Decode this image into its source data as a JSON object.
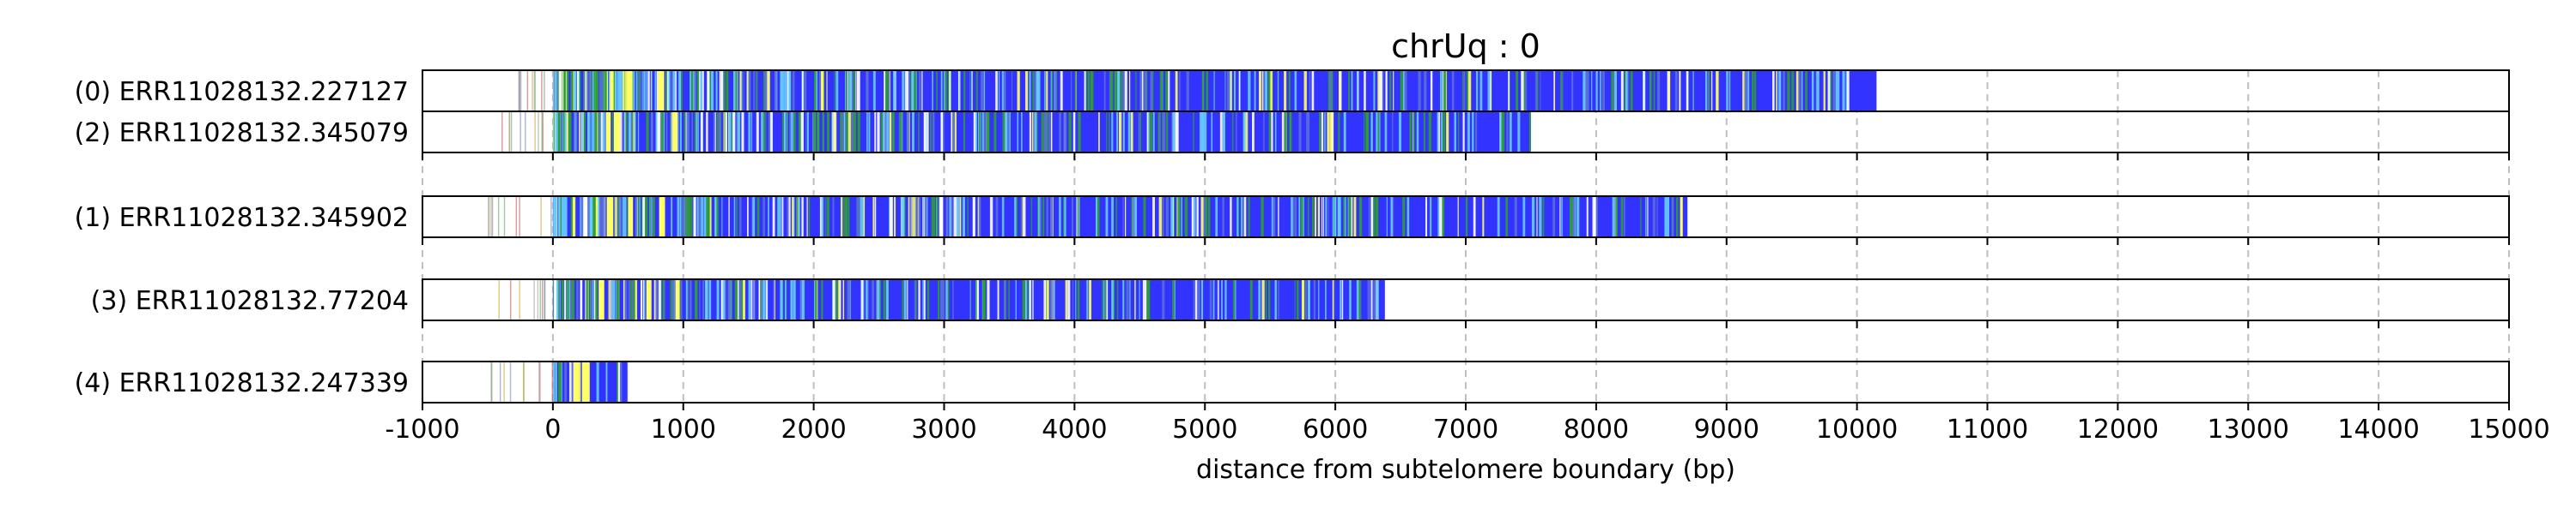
{
  "chart_data": {
    "type": "bar",
    "title": "chrUq : 0",
    "xlabel": "distance from subtelomere boundary (bp)",
    "ylabel": "",
    "xlim": [
      -1000,
      15000
    ],
    "xticks": [
      "-1000",
      "0",
      "1000",
      "2000",
      "3000",
      "4000",
      "5000",
      "6000",
      "7000",
      "8000",
      "9000",
      "10000",
      "11000",
      "12000",
      "13000",
      "14000"
    ],
    "xtick_values": [
      -1000,
      0,
      1000,
      2000,
      3000,
      4000,
      5000,
      6000,
      7000,
      8000,
      9000,
      10000,
      11000,
      12000,
      13000,
      14000
    ],
    "last_tick": "15000",
    "grid": "vertical dashed at each 1000 bp",
    "colors": {
      "repeat_fill": "#3333ff",
      "variant_green": "#2ca02c",
      "variant_yellow": "#ffff66",
      "variant_cyan": "#66ccff",
      "variant_white": "#ffffff",
      "grid": "#b0b0b0"
    },
    "reads": [
      {
        "label": "(0) ERR11028132.227127",
        "group": 0,
        "subtelomere_start": -500,
        "repeat_start": 0,
        "repeat_end": 10150
      },
      {
        "label": "(2) ERR11028132.345079",
        "group": 0,
        "subtelomere_start": -500,
        "repeat_start": 0,
        "repeat_end": 7500
      },
      {
        "label": "(1) ERR11028132.345902",
        "group": 1,
        "subtelomere_start": -500,
        "repeat_start": 0,
        "repeat_end": 8700
      },
      {
        "label": "(3) ERR11028132.77204",
        "group": 2,
        "subtelomere_start": -500,
        "repeat_start": 0,
        "repeat_end": 6380
      },
      {
        "label": "(4) ERR11028132.247339",
        "group": 3,
        "subtelomere_start": -500,
        "repeat_start": 0,
        "repeat_end": 580
      }
    ]
  }
}
